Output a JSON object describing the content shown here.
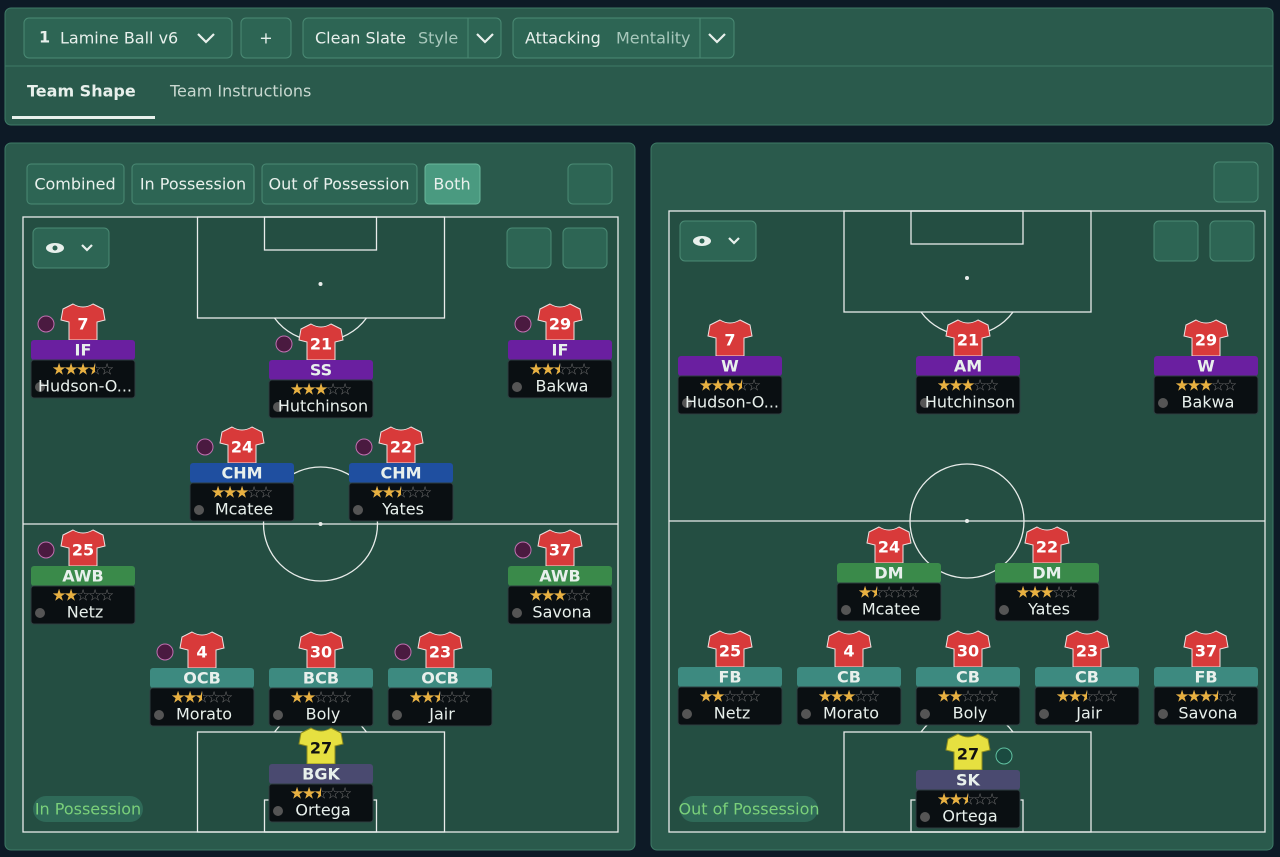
{
  "toolbar": {
    "tactic_slot": "1",
    "tactic_name": "Lamine Ball v6",
    "add": "+",
    "style_value": "Clean Slate",
    "style_label": "Style",
    "mentality_value": "Attacking",
    "mentality_label": "Mentality"
  },
  "tabs": [
    "Team Shape",
    "Team Instructions"
  ],
  "view_filters": [
    "Combined",
    "In Possession",
    "Out of Possession",
    "Both"
  ],
  "panels": [
    {
      "label": "In Possession",
      "players": [
        {
          "number": "7",
          "role": "IF",
          "name": "Hudson-O...",
          "rating": 3.5
        },
        {
          "number": "21",
          "role": "SS",
          "name": "Hutchinson",
          "rating": 3
        },
        {
          "number": "29",
          "role": "IF",
          "name": "Bakwa",
          "rating": 2.5
        },
        {
          "number": "24",
          "role": "CHM",
          "name": "Mcatee",
          "rating": 3
        },
        {
          "number": "22",
          "role": "CHM",
          "name": "Yates",
          "rating": 2.5
        },
        {
          "number": "25",
          "role": "AWB",
          "name": "Netz",
          "rating": 2
        },
        {
          "number": "37",
          "role": "AWB",
          "name": "Savona",
          "rating": 3
        },
        {
          "number": "4",
          "role": "OCB",
          "name": "Morato",
          "rating": 2.5
        },
        {
          "number": "30",
          "role": "BCB",
          "name": "Boly",
          "rating": 2
        },
        {
          "number": "23",
          "role": "OCB",
          "name": "Jair",
          "rating": 2.5
        },
        {
          "number": "27",
          "role": "BGK",
          "name": "Ortega",
          "rating": 2.5
        }
      ]
    },
    {
      "label": "Out of Possession",
      "players": [
        {
          "number": "7",
          "role": "W",
          "name": "Hudson-O...",
          "rating": 3.5
        },
        {
          "number": "21",
          "role": "AM",
          "name": "Hutchinson",
          "rating": 3
        },
        {
          "number": "29",
          "role": "W",
          "name": "Bakwa",
          "rating": 3
        },
        {
          "number": "24",
          "role": "DM",
          "name": "Mcatee",
          "rating": 1.5
        },
        {
          "number": "22",
          "role": "DM",
          "name": "Yates",
          "rating": 3
        },
        {
          "number": "25",
          "role": "FB",
          "name": "Netz",
          "rating": 2
        },
        {
          "number": "4",
          "role": "CB",
          "name": "Morato",
          "rating": 3
        },
        {
          "number": "30",
          "role": "CB",
          "name": "Boly",
          "rating": 2
        },
        {
          "number": "23",
          "role": "CB",
          "name": "Jair",
          "rating": 2.5
        },
        {
          "number": "37",
          "role": "FB",
          "name": "Savona",
          "rating": 3.5
        },
        {
          "number": "27",
          "role": "SK",
          "name": "Ortega",
          "rating": 2.5
        }
      ]
    }
  ]
}
